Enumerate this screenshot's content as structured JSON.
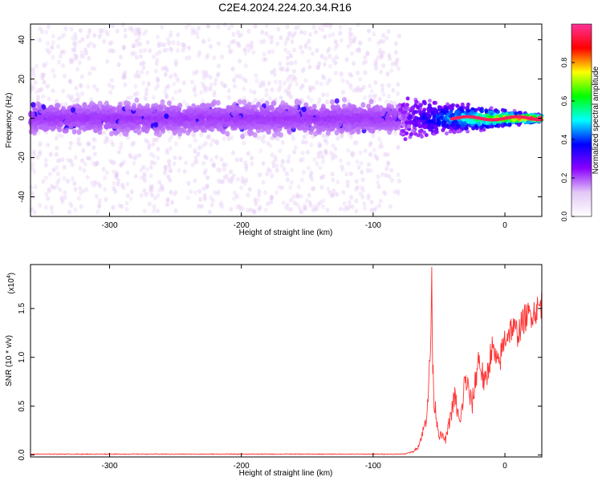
{
  "title": "C2E4.2024.224.20.34.R16",
  "chart_data": [
    {
      "type": "heatmap",
      "xlabel": "Height of straight line (km)",
      "ylabel": "Frequency (Hz)",
      "xlim": [
        -360,
        28
      ],
      "ylim": [
        -50,
        48
      ],
      "xticks": [
        "-300",
        "-200",
        "-100",
        "0"
      ],
      "xtick_values": [
        -300,
        -200,
        -100,
        0
      ],
      "yticks": [
        "-40",
        "-20",
        "0",
        "20",
        "40"
      ],
      "ytick_values": [
        -40,
        -20,
        0,
        20,
        40
      ],
      "colorbar": {
        "label": "Normalized spectral amplitude",
        "range": [
          0,
          1
        ],
        "ticks": [
          "0.0",
          "0.2",
          "0.4",
          "0.6",
          "0.8"
        ],
        "tick_values": [
          0,
          0.2,
          0.4,
          0.6,
          0.8
        ],
        "colors": [
          "#ffffff",
          "#e3c8f5",
          "#8a00ff",
          "#0000ff",
          "#00ffff",
          "#00ff00",
          "#ffff00",
          "#ff0000",
          "#ff3399"
        ]
      },
      "features": {
        "noise_region_x": [
          -360,
          -80
        ],
        "noise_band_halfwidth_hz": 10,
        "noise_band_amplitude": 0.15,
        "scatter_extent_hz": 48,
        "signal_region_x": [
          -80,
          28
        ],
        "signal_center_hz": 0,
        "signal_peak_amplitude": 0.95
      }
    },
    {
      "type": "line",
      "xlabel": "Height of straight line (km)",
      "ylabel": "SNR (10 * v/v)",
      "y_multiplier": "(x10",
      "y_multiplier_exp": "4",
      "y_multiplier_close": ")",
      "xlim": [
        -360,
        28
      ],
      "ylim": [
        -0.02,
        1.95
      ],
      "xticks": [
        "-300",
        "-200",
        "-100",
        "0"
      ],
      "xtick_values": [
        -300,
        -200,
        -100,
        0
      ],
      "yticks": [
        "0.0",
        "0.5",
        "1.0",
        "1.5"
      ],
      "ytick_values": [
        0,
        0.5,
        1.0,
        1.5
      ],
      "series": [
        {
          "color": "#ff3333",
          "x": [
            -360,
            -80,
            -75,
            -70,
            -66,
            -63,
            -60,
            -58,
            -57,
            -56,
            -55.5,
            -55,
            -54,
            -52,
            -50,
            -48,
            -45,
            -42,
            -38,
            -34,
            -30,
            -25,
            -20,
            -15,
            -10,
            -5,
            0,
            5,
            10,
            15,
            20,
            25,
            28
          ],
          "y": [
            0.005,
            0.005,
            0.01,
            0.03,
            0.08,
            0.2,
            0.35,
            0.7,
            0.9,
            1.3,
            1.95,
            1.0,
            0.6,
            0.4,
            0.2,
            0.2,
            0.15,
            0.35,
            0.6,
            0.3,
            0.8,
            0.5,
            1.0,
            0.7,
            1.1,
            0.9,
            1.2,
            1.3,
            1.25,
            1.4,
            1.45,
            1.5,
            1.55
          ],
          "noise_amplitude": 0.15
        }
      ]
    }
  ]
}
